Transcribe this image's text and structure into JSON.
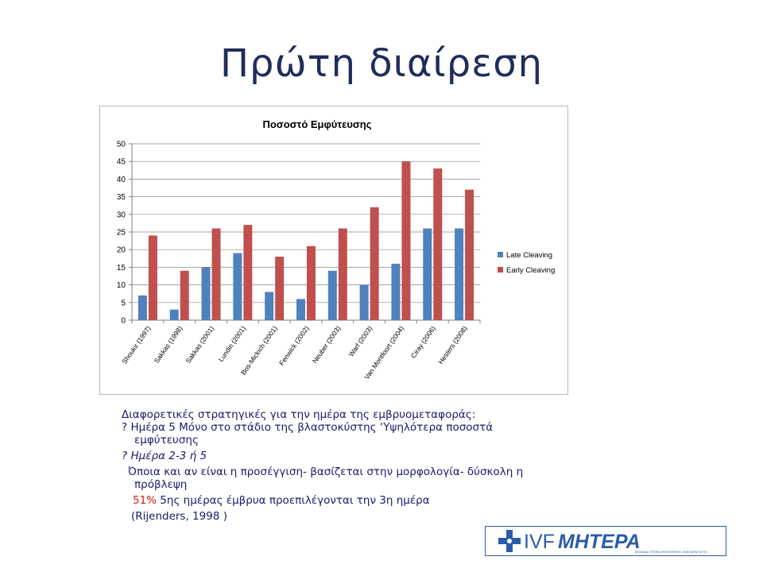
{
  "slide": {
    "title": "Πρώτη διαίρεση"
  },
  "chart_data": {
    "type": "bar",
    "title": "Ποσοστό Εμφύτευσης",
    "xlabel": "",
    "ylabel": "",
    "ylim": [
      0,
      50
    ],
    "yticks": [
      0,
      5,
      10,
      15,
      20,
      25,
      30,
      35,
      40,
      45,
      50
    ],
    "grid": true,
    "legend_position": "right",
    "categories": [
      "Shoukir (1997)",
      "Sakkas (1998)",
      "Sakkas (2001)",
      "Lundin (2001)",
      "Bos-Mickich (2001)",
      "Fenwick (2002)",
      "Neuber (2003)",
      "Warf (2003)",
      "Van Montfoort (2004)",
      "Ciray (2006)",
      "Hesters (2008)"
    ],
    "series": [
      {
        "name": "Late Cleaving",
        "color": "#4f81bd",
        "values": [
          7,
          3,
          15,
          19,
          8,
          6,
          14,
          10,
          16,
          26,
          26
        ]
      },
      {
        "name": "Early Cleaving",
        "color": "#c0504d",
        "values": [
          24,
          14,
          26,
          27,
          18,
          21,
          26,
          32,
          45,
          43,
          37
        ]
      }
    ]
  },
  "text": {
    "line1": "Διαφορετικές στρατηγικές για την ημέρα της εμβρυομεταφοράς:",
    "line2a": "? Ημέρα  5 Μόνο στο στάδιο της βλαστοκύστης ‘Υψηλότερα ποσοστά",
    "line2b": "εμφύτευσης",
    "line3": "? Ημέρα 2-3 ή 5",
    "line4a": "Όποια και αν είναι η προσέγγιση- βασίζεται στην μορφολογία- δύσκολη η",
    "line4b": "πρόβλεψη",
    "line5_red": "51%",
    "line5_rest": "  5ης ημέρας έμβρυα προεπιλέγονται την 3η  ημέρα",
    "line6": "(Rijenders, 1998 )"
  },
  "logo": {
    "prefix": "IVF",
    "name": "ΜΗΤΕΡΑ",
    "tagline": "ΜΟΝΑΔΑ ΥΠΟΒΟΗΘΟΥΜΕΝΗΣ ΑΝΑΠΑΡΑΓΩΓΗΣ",
    "color": "#2b5ca8"
  }
}
